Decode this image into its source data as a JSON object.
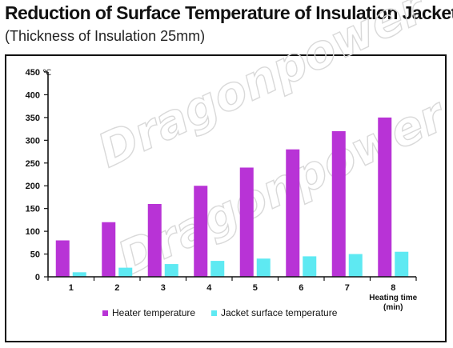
{
  "title": "Reduction of Surface Temperature of Insulation Jackets",
  "subtitle": "(Thickness of Insulation 25mm)",
  "watermark": "Dragonpower",
  "colors": {
    "heater": "#b833d6",
    "jacket": "#5ee9f2",
    "axis": "#111111"
  },
  "chart_data": {
    "type": "bar",
    "categories": [
      "1",
      "2",
      "3",
      "4",
      "5",
      "6",
      "7",
      "8"
    ],
    "series": [
      {
        "name": "Heater temperature",
        "values": [
          80,
          120,
          160,
          200,
          240,
          280,
          320,
          350
        ]
      },
      {
        "name": "Jacket surface temperature",
        "values": [
          10,
          20,
          28,
          35,
          40,
          45,
          50,
          55
        ]
      }
    ],
    "y_unit": "℃",
    "xlabel": [
      "Heating time",
      "(min)"
    ],
    "ylim": [
      0,
      450
    ],
    "yticks": [
      0,
      50,
      100,
      150,
      200,
      250,
      300,
      350,
      400,
      450
    ],
    "legend": "bottom",
    "grid": false
  }
}
